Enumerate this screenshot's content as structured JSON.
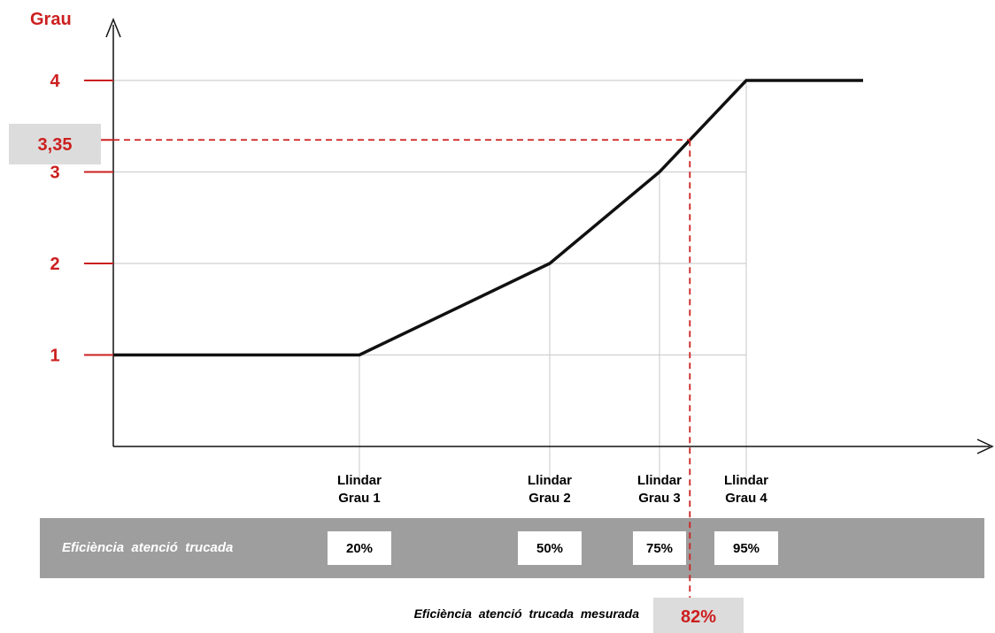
{
  "colors": {
    "accent": "#cc1f1f",
    "line": "#111111",
    "grid": "#d0d0d0",
    "bar": "#9e9e9e",
    "highlight": "#dcdcdc"
  },
  "chart_data": {
    "type": "line",
    "ylabel": "Grau",
    "y_ticks": [
      "1",
      "2",
      "3",
      "4"
    ],
    "ylim": [
      0,
      4.3
    ],
    "series": [
      {
        "values": [
          {
            "x": 0,
            "y": 1
          },
          {
            "x": 20,
            "y": 1
          },
          {
            "x": 50,
            "y": 2
          },
          {
            "x": 75,
            "y": 3
          },
          {
            "x": 95,
            "y": 4
          },
          {
            "x": 111,
            "y": 4
          }
        ]
      }
    ],
    "thresholds": [
      {
        "label_line1": "Llindar",
        "label_line2": "Grau 1",
        "value": "20%",
        "x": 20,
        "y": 1
      },
      {
        "label_line1": "Llindar",
        "label_line2": "Grau 2",
        "value": "50%",
        "x": 50,
        "y": 2
      },
      {
        "label_line1": "Llindar",
        "label_line2": "Grau 3",
        "value": "75%",
        "x": 75,
        "y": 3
      },
      {
        "label_line1": "Llindar",
        "label_line2": "Grau  4",
        "value": "95%",
        "x": 95,
        "y": 4
      }
    ],
    "bar_label": "Eficiència  atenció  trucada",
    "measured": {
      "x": 82,
      "y": 3.35,
      "x_label": "82%",
      "y_label": "3,35",
      "caption": "Eficiència  atenció  trucada  mesurada"
    }
  }
}
